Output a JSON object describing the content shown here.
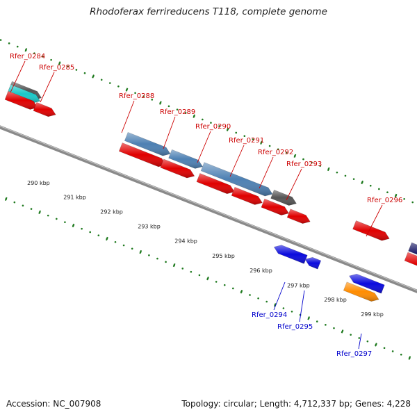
{
  "title": "Rhodoferax ferrireducens T118, complete genome",
  "footer": {
    "accession": "Accession: NC_007908",
    "topology": "Topology: circular; Length: 4,712,337 bp; Genes: 4,228"
  },
  "colors": {
    "backbone": "#8a8a8a",
    "tick_green": "#1f7a1f",
    "label_forward": "#cc0000",
    "label_reverse": "#0000cc",
    "feature_red": "#e00000",
    "feature_steelblue": "#4d80b3",
    "feature_blue": "#0a0add",
    "feature_gray": "#555555",
    "feature_orange": "#ff8c00",
    "feature_cyan": "#19c8c8",
    "feature_navy": "#101060"
  },
  "scale_labels": [
    "290 kbp",
    "291 kbp",
    "292 kbp",
    "293 kbp",
    "294 kbp",
    "295 kbp",
    "296 kbp",
    "297 kbp",
    "298 kbp",
    "299 kbp"
  ],
  "gene_labels": [
    {
      "text": "Rfer_0284",
      "strand": "forward"
    },
    {
      "text": "Rfer_0285",
      "strand": "forward"
    },
    {
      "text": "Rfer_0288",
      "strand": "forward"
    },
    {
      "text": "Rfer_0289",
      "strand": "forward"
    },
    {
      "text": "Rfer_0290",
      "strand": "forward"
    },
    {
      "text": "Rfer_0291",
      "strand": "forward"
    },
    {
      "text": "Rfer_0292",
      "strand": "forward"
    },
    {
      "text": "Rfer_0293",
      "strand": "forward"
    },
    {
      "text": "Rfer_0296",
      "strand": "forward"
    },
    {
      "text": "Rfer_0294",
      "strand": "reverse"
    },
    {
      "text": "Rfer_0295",
      "strand": "reverse"
    },
    {
      "text": "Rfer_0297",
      "strand": "reverse"
    }
  ]
}
